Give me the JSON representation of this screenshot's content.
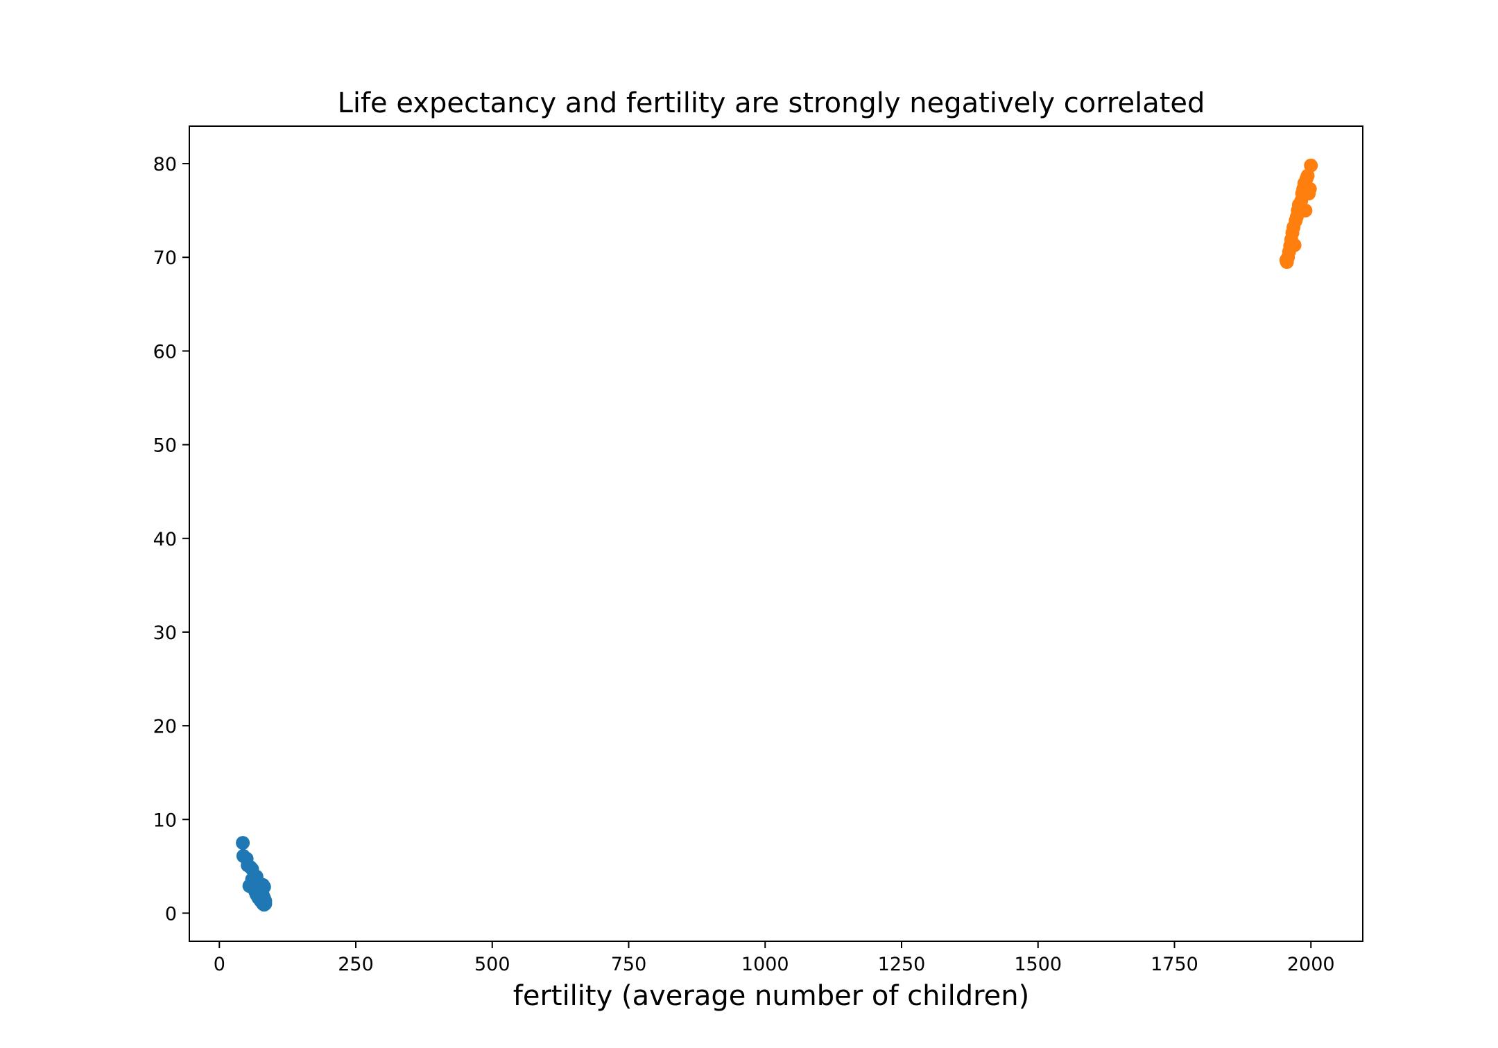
{
  "chart_data": {
    "type": "scatter",
    "title": "Life expectancy and fertility are strongly negatively correlated",
    "xlabel": "fertility (average number of children)",
    "ylabel": "",
    "xlim": [
      -55,
      2095
    ],
    "ylim": [
      -3,
      84
    ],
    "xticks": [
      0,
      250,
      500,
      750,
      1000,
      1250,
      1500,
      1750,
      2000
    ],
    "yticks": [
      0,
      10,
      20,
      30,
      40,
      50,
      60,
      70,
      80
    ],
    "grid": false,
    "series": [
      {
        "color": "#1f77b4",
        "points": [
          [
            43,
            7.5
          ],
          [
            44,
            6.1
          ],
          [
            50,
            5.8
          ],
          [
            52,
            5.1
          ],
          [
            57,
            4.9
          ],
          [
            60,
            4.7
          ],
          [
            55,
            2.9
          ],
          [
            60,
            3.6
          ],
          [
            63,
            3.3
          ],
          [
            66,
            3.1
          ],
          [
            68,
            3.9
          ],
          [
            70,
            3.4
          ],
          [
            64,
            2.6
          ],
          [
            66,
            2.3
          ],
          [
            68,
            2.0
          ],
          [
            70,
            1.8
          ],
          [
            72,
            1.6
          ],
          [
            74,
            1.5
          ],
          [
            76,
            1.3
          ],
          [
            78,
            1.2
          ],
          [
            80,
            1.0
          ],
          [
            82,
            0.9
          ],
          [
            76,
            2.5
          ],
          [
            78,
            2.2
          ],
          [
            80,
            1.9
          ],
          [
            82,
            1.6
          ],
          [
            84,
            1.3
          ],
          [
            84,
            1.0
          ],
          [
            80,
            3.0
          ],
          [
            82,
            2.8
          ]
        ]
      },
      {
        "color": "#ff7f0e",
        "points": [
          [
            1955,
            69.7
          ],
          [
            1956,
            69.5
          ],
          [
            1958,
            70.0
          ],
          [
            1960,
            70.6
          ],
          [
            1962,
            71.2
          ],
          [
            1964,
            71.9
          ],
          [
            1966,
            72.6
          ],
          [
            1968,
            73.2
          ],
          [
            1970,
            71.3
          ],
          [
            1972,
            73.9
          ],
          [
            1974,
            74.3
          ],
          [
            1976,
            75.0
          ],
          [
            1978,
            75.6
          ],
          [
            1980,
            75.2
          ],
          [
            1982,
            76.0
          ],
          [
            1984,
            76.8
          ],
          [
            1986,
            77.3
          ],
          [
            1988,
            77.9
          ],
          [
            1990,
            75.0
          ],
          [
            1992,
            78.4
          ],
          [
            1994,
            78.7
          ],
          [
            1996,
            76.8
          ],
          [
            1998,
            77.3
          ],
          [
            2000,
            79.8
          ]
        ]
      }
    ]
  }
}
